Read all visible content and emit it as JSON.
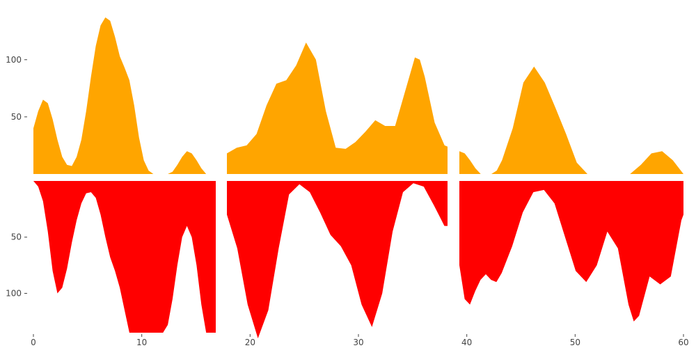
{
  "chart_data": {
    "type": "area",
    "title": "",
    "xlabel": "",
    "ylabel": "",
    "xlim": [
      0,
      60
    ],
    "x_ticks": [
      0,
      10,
      20,
      30,
      40,
      50,
      60
    ],
    "upper": {
      "ylim": [
        0,
        137
      ],
      "y_ticks": [
        50,
        100
      ],
      "series": [
        {
          "color": "#FFA500",
          "segments": [
            [
              [
                0,
                40
              ],
              [
                0.5,
                55
              ],
              [
                1,
                65
              ],
              [
                1.5,
                62
              ],
              [
                2,
                48
              ],
              [
                2.5,
                30
              ],
              [
                3,
                15
              ],
              [
                3.5,
                8
              ],
              [
                4,
                7
              ],
              [
                4.5,
                15
              ],
              [
                5,
                30
              ],
              [
                5.5,
                55
              ],
              [
                6,
                85
              ],
              [
                6.5,
                112
              ],
              [
                7,
                130
              ],
              [
                7.5,
                137
              ],
              [
                8,
                134
              ],
              [
                8.5,
                120
              ],
              [
                9,
                103
              ],
              [
                9.5,
                93
              ],
              [
                10,
                82
              ],
              [
                10.5,
                60
              ],
              [
                11,
                32
              ],
              [
                11.5,
                12
              ],
              [
                12,
                3
              ],
              [
                12.5,
                0
              ]
            ],
            [
              [
                14,
                0
              ],
              [
                14.5,
                2
              ],
              [
                15,
                8
              ],
              [
                15.5,
                15
              ],
              [
                16,
                20
              ],
              [
                16.5,
                18
              ],
              [
                17,
                12
              ],
              [
                17.5,
                5
              ],
              [
                18,
                0
              ]
            ]
          ]
        },
        {
          "color": "#FFA500",
          "segments": [
            [
              [
                20,
                18
              ],
              [
                21,
                23
              ],
              [
                22,
                25
              ],
              [
                23,
                35
              ],
              [
                24,
                60
              ],
              [
                25,
                79
              ],
              [
                26,
                82
              ],
              [
                27,
                95
              ],
              [
                28,
                115
              ],
              [
                29,
                100
              ],
              [
                30,
                55
              ],
              [
                31,
                23
              ],
              [
                32,
                22
              ],
              [
                33,
                28
              ],
              [
                34,
                37
              ],
              [
                35,
                47
              ],
              [
                36,
                42
              ],
              [
                37,
                42
              ],
              [
                38,
                72
              ],
              [
                39,
                102
              ],
              [
                39.5,
                100
              ],
              [
                40,
                85
              ],
              [
                41,
                45
              ],
              [
                42,
                25
              ],
              [
                42.3,
                24
              ]
            ]
          ]
        },
        {
          "color": "#FFA500",
          "segments": [
            [
              [
                0,
                20
              ],
              [
                0.5,
                18
              ],
              [
                1,
                12
              ],
              [
                1.5,
                5
              ],
              [
                2,
                0
              ]
            ],
            [
              [
                3,
                0
              ],
              [
                3.5,
                3
              ],
              [
                4,
                12
              ],
              [
                5,
                40
              ],
              [
                6,
                80
              ],
              [
                7,
                94
              ],
              [
                8,
                80
              ],
              [
                9,
                58
              ],
              [
                10,
                35
              ],
              [
                11,
                10
              ],
              [
                12,
                0
              ]
            ],
            [
              [
                16,
                0
              ],
              [
                17,
                8
              ],
              [
                18,
                18
              ],
              [
                19,
                20
              ],
              [
                20,
                12
              ],
              [
                21,
                0
              ]
            ]
          ]
        }
      ]
    },
    "lower": {
      "ylim": [
        0,
        135
      ],
      "y_ticks": [
        50,
        100
      ],
      "series": [
        {
          "color": "#FF0000",
          "segments": [
            [
              [
                0,
                0
              ],
              [
                0.5,
                5
              ],
              [
                1,
                18
              ],
              [
                1.5,
                45
              ],
              [
                2,
                80
              ],
              [
                2.5,
                100
              ],
              [
                3,
                95
              ],
              [
                3.5,
                78
              ],
              [
                4,
                55
              ],
              [
                4.5,
                35
              ],
              [
                5,
                20
              ],
              [
                5.5,
                11
              ],
              [
                6,
                10
              ],
              [
                6.5,
                15
              ],
              [
                7,
                30
              ],
              [
                7.5,
                50
              ],
              [
                8,
                68
              ],
              [
                8.5,
                80
              ],
              [
                9,
                95
              ],
              [
                9.5,
                115
              ],
              [
                10,
                135
              ],
              [
                12,
                135
              ],
              [
                13.5,
                135
              ],
              [
                14,
                128
              ],
              [
                14.5,
                105
              ],
              [
                15,
                75
              ],
              [
                15.5,
                50
              ],
              [
                16,
                40
              ],
              [
                16.5,
                50
              ],
              [
                17,
                75
              ],
              [
                17.5,
                110
              ],
              [
                18,
                135
              ],
              [
                19,
                135
              ]
            ]
          ]
        },
        {
          "color": "#FF0000",
          "segments": [
            [
              [
                0,
                30
              ],
              [
                1,
                60
              ],
              [
                2,
                110
              ],
              [
                3,
                140
              ],
              [
                4,
                115
              ],
              [
                5,
                60
              ],
              [
                6,
                12
              ],
              [
                7,
                3
              ],
              [
                8,
                10
              ],
              [
                9,
                28
              ],
              [
                10,
                48
              ],
              [
                11,
                58
              ],
              [
                12,
                75
              ],
              [
                13,
                110
              ],
              [
                14,
                130
              ],
              [
                15,
                100
              ],
              [
                16,
                45
              ],
              [
                17,
                10
              ],
              [
                18,
                2
              ],
              [
                19,
                5
              ],
              [
                20,
                22
              ],
              [
                21,
                40
              ],
              [
                21.3,
                40
              ]
            ]
          ]
        },
        {
          "color": "#FF0000",
          "segments": [
            [
              [
                0,
                75
              ],
              [
                0.5,
                105
              ],
              [
                1,
                110
              ],
              [
                1.5,
                98
              ],
              [
                2,
                88
              ],
              [
                2.5,
                83
              ],
              [
                3,
                88
              ],
              [
                3.5,
                90
              ],
              [
                4,
                82
              ],
              [
                5,
                58
              ],
              [
                6,
                28
              ],
              [
                7,
                10
              ],
              [
                8,
                8
              ],
              [
                9,
                20
              ],
              [
                10,
                50
              ],
              [
                11,
                80
              ],
              [
                12,
                90
              ],
              [
                13,
                75
              ],
              [
                14,
                45
              ],
              [
                15,
                60
              ],
              [
                16,
                110
              ],
              [
                16.5,
                125
              ],
              [
                17,
                120
              ],
              [
                18,
                85
              ],
              [
                19,
                92
              ],
              [
                20,
                85
              ],
              [
                21,
                35
              ],
              [
                21.2,
                30
              ]
            ]
          ]
        }
      ]
    }
  }
}
